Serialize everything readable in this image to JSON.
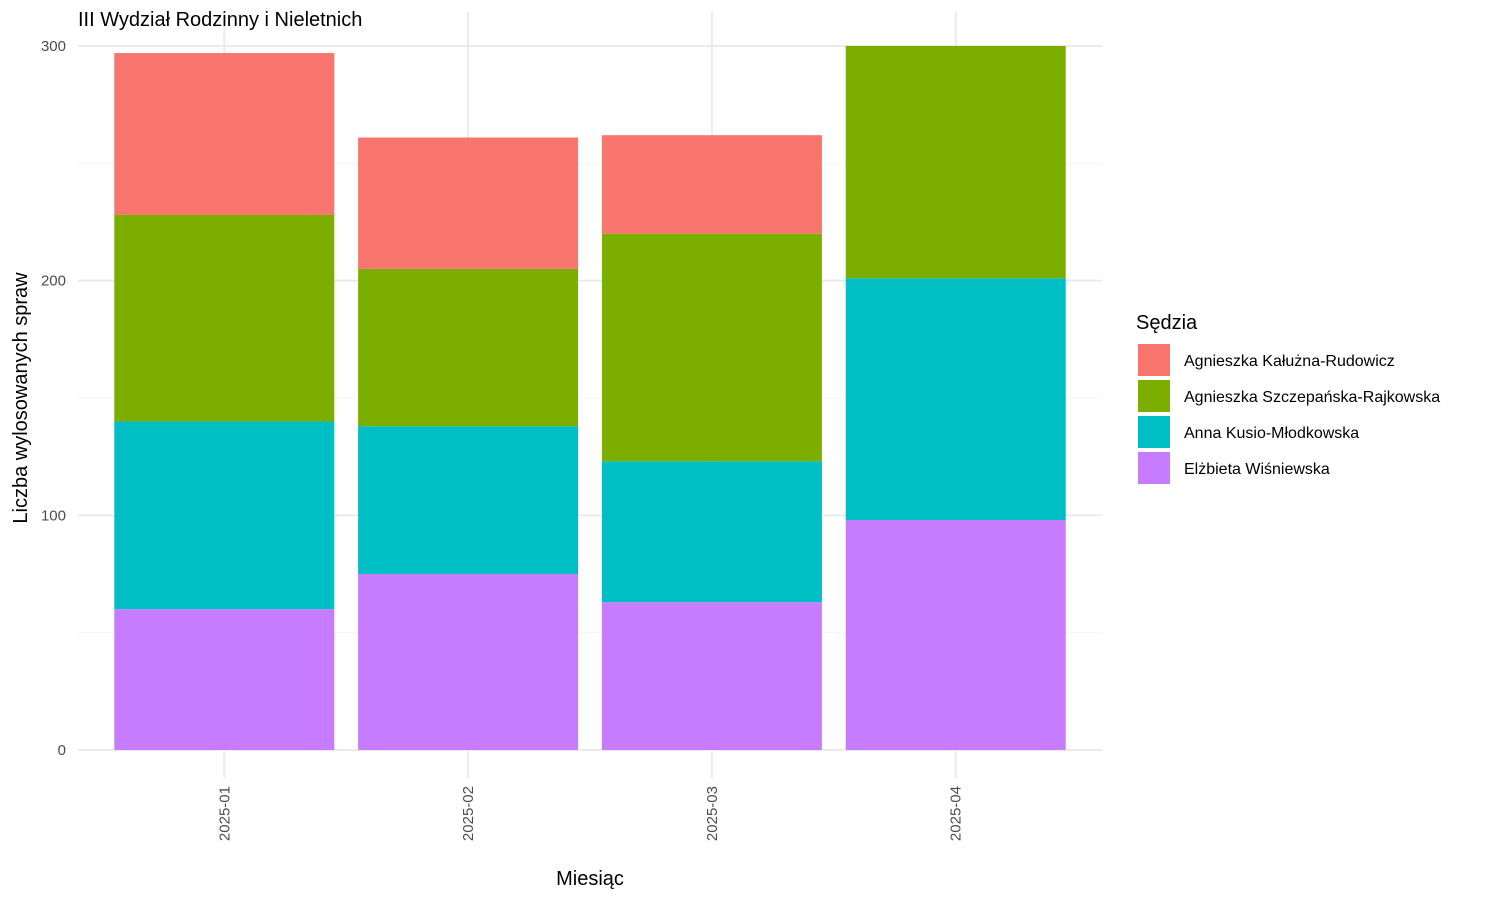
{
  "chart_data": {
    "type": "bar",
    "stacked": true,
    "title": "III Wydział Rodzinny i Nieletnich",
    "xlabel": "Miesiąc",
    "ylabel": "Liczba wylosowanych spraw",
    "categories": [
      "2025-01",
      "2025-02",
      "2025-03",
      "2025-04"
    ],
    "ylim": [
      0,
      300
    ],
    "yticks": [
      0,
      100,
      200,
      300
    ],
    "grid": true,
    "legend": {
      "title": "Sędzia",
      "position": "right"
    },
    "series": [
      {
        "name": "Agnieszka Kałużna-Rudowicz",
        "color": "#F8766D",
        "values": [
          69,
          56,
          42,
          0
        ]
      },
      {
        "name": "Agnieszka Szczepańska-Rajkowska",
        "color": "#7CAE00",
        "values": [
          88,
          67,
          97,
          99
        ]
      },
      {
        "name": "Anna Kusio-Młodkowska",
        "color": "#00BFC4",
        "values": [
          80,
          63,
          60,
          103
        ]
      },
      {
        "name": "Elżbieta Wiśniewska",
        "color": "#C77CFF",
        "values": [
          60,
          75,
          63,
          98
        ]
      }
    ]
  }
}
